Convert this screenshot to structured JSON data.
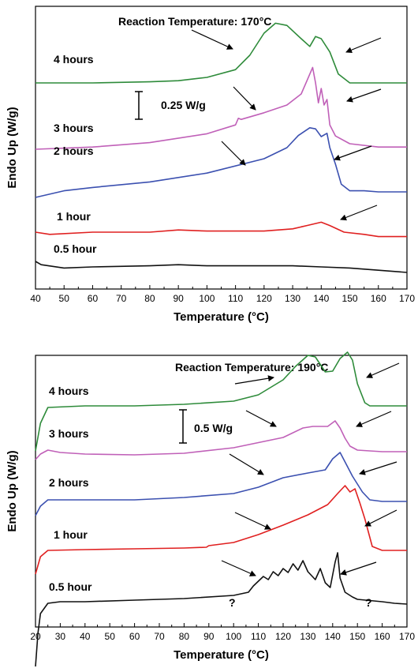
{
  "chart_data": [
    {
      "type": "line",
      "title": "Reaction Temperature: 170°C",
      "xlabel": "Temperature (°C)",
      "ylabel": "Endo Up (W/g)",
      "xlim": [
        40,
        170
      ],
      "xticks": [
        "40",
        "50",
        "60",
        "70",
        "80",
        "90",
        "100",
        "110",
        "120",
        "130",
        "140",
        "150",
        "160",
        "170"
      ],
      "scale_bar": "0.25 W/g",
      "yticks": false,
      "grid": false,
      "series": [
        {
          "name": "4 hours",
          "color": "#2e8b3a",
          "points": [
            [
              40,
              0.0
            ],
            [
              60,
              0.0
            ],
            [
              80,
              0.01
            ],
            [
              90,
              0.02
            ],
            [
              100,
              0.05
            ],
            [
              110,
              0.12
            ],
            [
              115,
              0.25
            ],
            [
              120,
              0.45
            ],
            [
              124,
              0.54
            ],
            [
              128,
              0.52
            ],
            [
              133,
              0.4
            ],
            [
              136,
              0.33
            ],
            [
              138,
              0.42
            ],
            [
              140,
              0.4
            ],
            [
              143,
              0.28
            ],
            [
              146,
              0.08
            ],
            [
              150,
              0.0
            ],
            [
              160,
              0.0
            ],
            [
              170,
              0.0
            ]
          ]
        },
        {
          "name": "3 hours",
          "color": "#c060b8",
          "points": [
            [
              40,
              0.0
            ],
            [
              60,
              0.02
            ],
            [
              80,
              0.06
            ],
            [
              100,
              0.14
            ],
            [
              110,
              0.22
            ],
            [
              111,
              0.28
            ],
            [
              112,
              0.27
            ],
            [
              120,
              0.33
            ],
            [
              128,
              0.4
            ],
            [
              133,
              0.5
            ],
            [
              135,
              0.62
            ],
            [
              137,
              0.74
            ],
            [
              138,
              0.6
            ],
            [
              139,
              0.42
            ],
            [
              140,
              0.55
            ],
            [
              141,
              0.4
            ],
            [
              142,
              0.45
            ],
            [
              143,
              0.22
            ],
            [
              145,
              0.12
            ],
            [
              150,
              0.05
            ],
            [
              160,
              0.02
            ],
            [
              170,
              0.02
            ]
          ]
        },
        {
          "name": "2 hours",
          "color": "#3b50b0",
          "points": [
            [
              40,
              0.0
            ],
            [
              50,
              0.06
            ],
            [
              60,
              0.09
            ],
            [
              80,
              0.14
            ],
            [
              100,
              0.22
            ],
            [
              120,
              0.35
            ],
            [
              128,
              0.45
            ],
            [
              132,
              0.56
            ],
            [
              136,
              0.63
            ],
            [
              138,
              0.62
            ],
            [
              140,
              0.55
            ],
            [
              142,
              0.58
            ],
            [
              143,
              0.45
            ],
            [
              145,
              0.3
            ],
            [
              147,
              0.12
            ],
            [
              150,
              0.06
            ],
            [
              155,
              0.06
            ],
            [
              160,
              0.05
            ],
            [
              170,
              0.05
            ]
          ]
        },
        {
          "name": "1 hour",
          "color": "#e02020",
          "points": [
            [
              40,
              0.0
            ],
            [
              45,
              -0.02
            ],
            [
              60,
              0.0
            ],
            [
              80,
              0.0
            ],
            [
              90,
              0.02
            ],
            [
              100,
              0.01
            ],
            [
              120,
              0.01
            ],
            [
              130,
              0.03
            ],
            [
              135,
              0.06
            ],
            [
              140,
              0.09
            ],
            [
              143,
              0.06
            ],
            [
              148,
              0.0
            ],
            [
              155,
              -0.02
            ],
            [
              160,
              -0.04
            ],
            [
              170,
              -0.04
            ]
          ]
        },
        {
          "name": "0.5 hour",
          "color": "#111111",
          "points": [
            [
              40,
              0.0
            ],
            [
              42,
              -0.03
            ],
            [
              50,
              -0.06
            ],
            [
              60,
              -0.05
            ],
            [
              80,
              -0.04
            ],
            [
              90,
              -0.03
            ],
            [
              100,
              -0.04
            ],
            [
              120,
              -0.04
            ],
            [
              130,
              -0.04
            ],
            [
              140,
              -0.05
            ],
            [
              150,
              -0.06
            ],
            [
              160,
              -0.08
            ],
            [
              170,
              -0.1
            ]
          ]
        }
      ],
      "annotations": []
    },
    {
      "type": "line",
      "title": "Reaction Temperature: 190°C",
      "xlabel": "Temperature (°C)",
      "ylabel": "Endo Up (W/g)",
      "xlim": [
        20,
        170
      ],
      "xticks": [
        "20",
        "30",
        "40",
        "50",
        "60",
        "70",
        "80",
        "90",
        "100",
        "110",
        "120",
        "130",
        "140",
        "150",
        "160",
        "170"
      ],
      "scale_bar": "0.5 W/g",
      "yticks": false,
      "grid": false,
      "series": [
        {
          "name": "4 hours",
          "color": "#2e8b3a",
          "points": [
            [
              20,
              -0.55
            ],
            [
              22,
              -0.2
            ],
            [
              25,
              0.0
            ],
            [
              40,
              0.02
            ],
            [
              60,
              0.02
            ],
            [
              80,
              0.04
            ],
            [
              100,
              0.08
            ],
            [
              110,
              0.16
            ],
            [
              120,
              0.35
            ],
            [
              125,
              0.52
            ],
            [
              130,
              0.66
            ],
            [
              133,
              0.64
            ],
            [
              137,
              0.45
            ],
            [
              140,
              0.46
            ],
            [
              143,
              0.62
            ],
            [
              146,
              0.7
            ],
            [
              148,
              0.6
            ],
            [
              150,
              0.3
            ],
            [
              153,
              0.06
            ],
            [
              155,
              0.02
            ],
            [
              170,
              0.02
            ]
          ]
        },
        {
          "name": "3 hours",
          "color": "#c060b8",
          "points": [
            [
              20,
              -0.12
            ],
            [
              22,
              -0.05
            ],
            [
              25,
              0.0
            ],
            [
              30,
              -0.03
            ],
            [
              40,
              -0.05
            ],
            [
              60,
              -0.06
            ],
            [
              80,
              -0.04
            ],
            [
              100,
              0.03
            ],
            [
              120,
              0.16
            ],
            [
              128,
              0.28
            ],
            [
              132,
              0.3
            ],
            [
              138,
              0.3
            ],
            [
              141,
              0.37
            ],
            [
              143,
              0.28
            ],
            [
              145,
              0.15
            ],
            [
              147,
              0.05
            ],
            [
              150,
              0.0
            ],
            [
              160,
              -0.02
            ],
            [
              170,
              -0.02
            ]
          ]
        },
        {
          "name": "2 hours",
          "color": "#3b50b0",
          "points": [
            [
              20,
              -0.2
            ],
            [
              22,
              -0.08
            ],
            [
              25,
              0.0
            ],
            [
              40,
              0.0
            ],
            [
              60,
              0.0
            ],
            [
              80,
              0.03
            ],
            [
              100,
              0.08
            ],
            [
              110,
              0.16
            ],
            [
              120,
              0.28
            ],
            [
              130,
              0.34
            ],
            [
              137,
              0.38
            ],
            [
              140,
              0.52
            ],
            [
              143,
              0.6
            ],
            [
              145,
              0.48
            ],
            [
              148,
              0.3
            ],
            [
              152,
              0.1
            ],
            [
              155,
              0.0
            ],
            [
              160,
              -0.02
            ],
            [
              170,
              -0.02
            ]
          ]
        },
        {
          "name": "1 hour",
          "color": "#e02020",
          "points": [
            [
              20,
              -0.3
            ],
            [
              22,
              -0.08
            ],
            [
              25,
              0.0
            ],
            [
              40,
              0.01
            ],
            [
              60,
              0.02
            ],
            [
              80,
              0.03
            ],
            [
              89,
              0.04
            ],
            [
              90,
              0.06
            ],
            [
              100,
              0.1
            ],
            [
              110,
              0.2
            ],
            [
              120,
              0.32
            ],
            [
              130,
              0.45
            ],
            [
              138,
              0.58
            ],
            [
              142,
              0.72
            ],
            [
              145,
              0.82
            ],
            [
              147,
              0.74
            ],
            [
              149,
              0.78
            ],
            [
              151,
              0.6
            ],
            [
              153,
              0.4
            ],
            [
              156,
              0.05
            ],
            [
              160,
              0.0
            ],
            [
              170,
              0.0
            ]
          ]
        },
        {
          "name": "0.5 hour",
          "color": "#111111",
          "points": [
            [
              20,
              -0.82
            ],
            [
              21,
              -0.4
            ],
            [
              22,
              -0.15
            ],
            [
              25,
              -0.02
            ],
            [
              30,
              0.0
            ],
            [
              40,
              0.0
            ],
            [
              60,
              0.02
            ],
            [
              80,
              0.04
            ],
            [
              100,
              0.08
            ],
            [
              106,
              0.12
            ],
            [
              108,
              0.2
            ],
            [
              110,
              0.26
            ],
            [
              112,
              0.32
            ],
            [
              114,
              0.28
            ],
            [
              116,
              0.38
            ],
            [
              118,
              0.33
            ],
            [
              120,
              0.42
            ],
            [
              122,
              0.37
            ],
            [
              124,
              0.48
            ],
            [
              126,
              0.4
            ],
            [
              128,
              0.52
            ],
            [
              130,
              0.38
            ],
            [
              133,
              0.28
            ],
            [
              135,
              0.42
            ],
            [
              137,
              0.24
            ],
            [
              139,
              0.18
            ],
            [
              141,
              0.5
            ],
            [
              142,
              0.62
            ],
            [
              143,
              0.3
            ],
            [
              145,
              0.12
            ],
            [
              148,
              0.06
            ],
            [
              150,
              0.03
            ],
            [
              160,
              0.0
            ],
            [
              165,
              -0.02
            ],
            [
              170,
              -0.03
            ]
          ]
        }
      ],
      "annotations": [
        "?",
        "?"
      ]
    }
  ]
}
